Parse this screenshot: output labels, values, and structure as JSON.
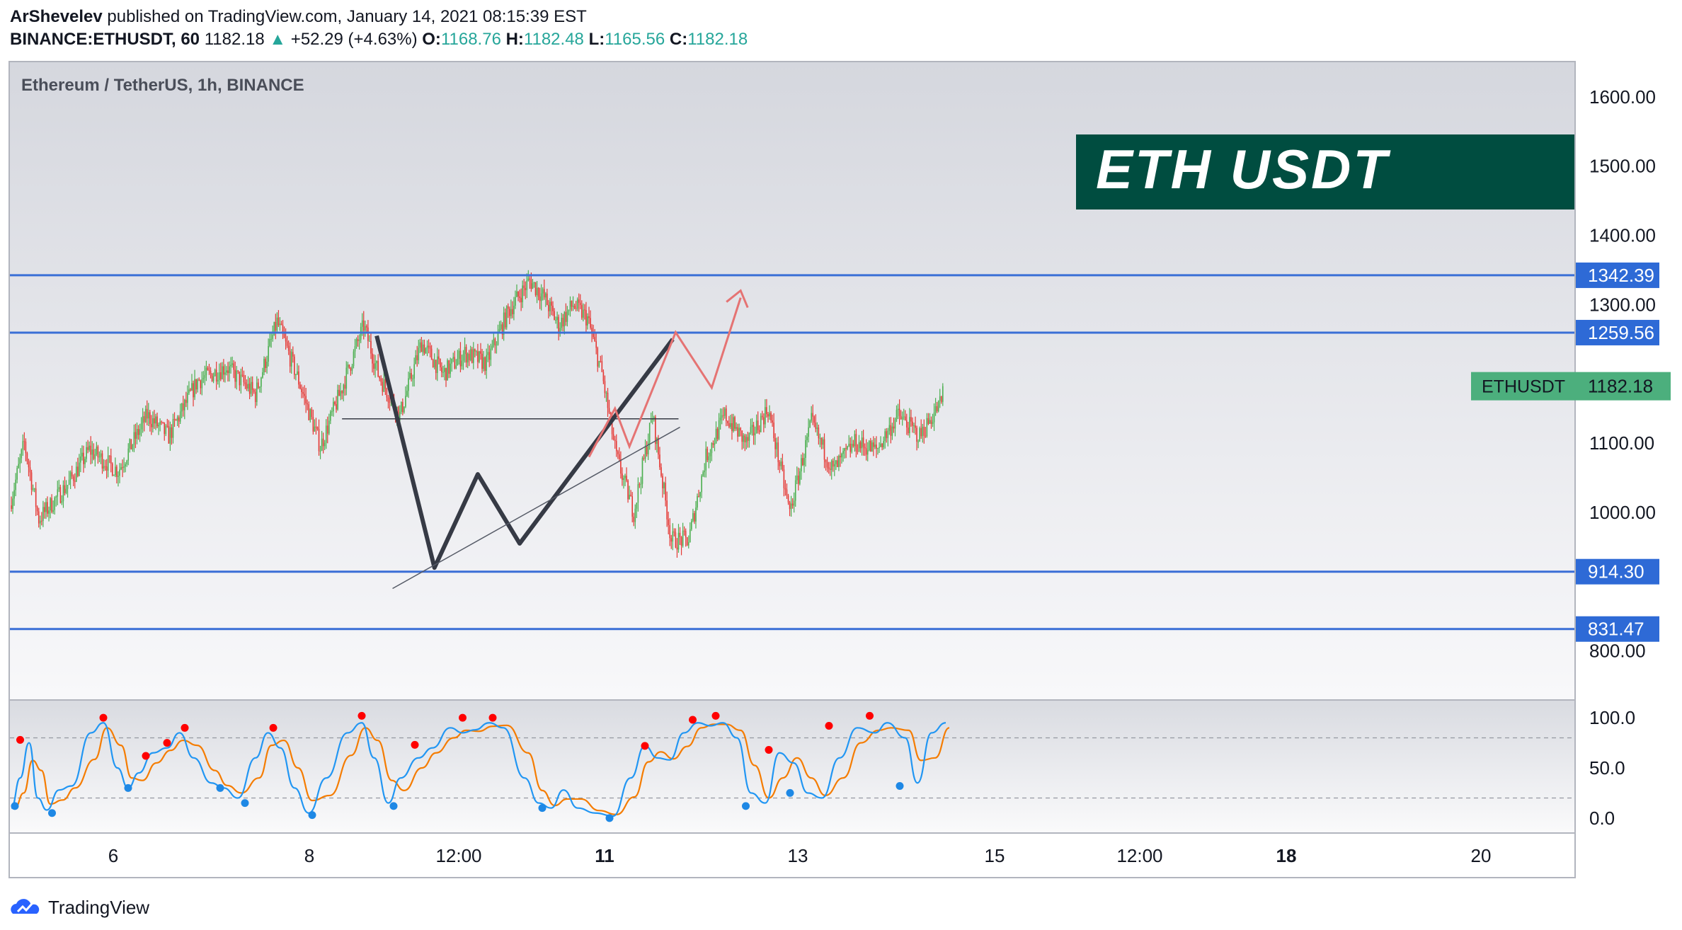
{
  "header": {
    "author": "ArShevelev",
    "published_text": "published on TradingView.com, January 14, 2021 08:15:39 EST",
    "symbol": "BINANCE:ETHUSDT, 60",
    "last": "1182.18",
    "change": "+52.29 (+4.63%)",
    "o_label": "O:",
    "o_value": "1168.76",
    "h_label": "H:",
    "h_value": "1182.48",
    "l_label": "L:",
    "l_value": "1165.56",
    "c_label": "C:",
    "c_value": "1182.18"
  },
  "footer": {
    "brand": "TradingView"
  },
  "chart_data": {
    "type": "candlestick",
    "title": "Ethereum / TetherUS, 1h, BINANCE",
    "banner": "ETH USDT",
    "ylim": [
      730,
      1650
    ],
    "y_ticks": [
      "1600.00",
      "1500.00",
      "1400.00",
      "1300.00",
      "1100.00",
      "1000.00",
      "800.00"
    ],
    "x_ticks": [
      "6",
      "8",
      "12:00",
      "11",
      "13",
      "15",
      "12:00",
      "18",
      "20"
    ],
    "price_levels": [
      {
        "label": "1342.39",
        "value": 1342.39
      },
      {
        "label": "1259.56",
        "value": 1259.56
      },
      {
        "label": "914.30",
        "value": 914.3
      },
      {
        "label": "831.47",
        "value": 831.47
      }
    ],
    "current_price": {
      "label": "ETHUSDT",
      "value": "1182.18",
      "price": 1182.18
    },
    "candles": {
      "count": 420,
      "anchors": [
        [
          0,
          1010
        ],
        [
          10,
          1100
        ],
        [
          20,
          990
        ],
        [
          40,
          1040
        ],
        [
          55,
          1090
        ],
        [
          75,
          1060
        ],
        [
          95,
          1140
        ],
        [
          110,
          1110
        ],
        [
          130,
          1190
        ],
        [
          150,
          1210
        ],
        [
          170,
          1170
        ],
        [
          185,
          1275
        ],
        [
          200,
          1190
        ],
        [
          215,
          1095
        ],
        [
          230,
          1180
        ],
        [
          245,
          1270
        ],
        [
          255,
          1200
        ],
        [
          270,
          1140
        ],
        [
          285,
          1245
        ],
        [
          300,
          1200
        ],
        [
          315,
          1230
        ],
        [
          330,
          1215
        ],
        [
          345,
          1290
        ],
        [
          360,
          1335
        ],
        [
          370,
          1310
        ],
        [
          380,
          1270
        ],
        [
          390,
          1300
        ],
        [
          400,
          1280
        ],
        [
          410,
          1200
        ],
        [
          420,
          1080
        ],
        [
          432,
          1000
        ],
        [
          445,
          1140
        ],
        [
          458,
          960
        ],
        [
          470,
          960
        ],
        [
          482,
          1080
        ],
        [
          495,
          1140
        ],
        [
          510,
          1100
        ],
        [
          525,
          1150
        ],
        [
          540,
          1000
        ],
        [
          555,
          1130
        ],
        [
          570,
          1060
        ],
        [
          585,
          1100
        ],
        [
          600,
          1090
        ],
        [
          615,
          1140
        ],
        [
          630,
          1110
        ],
        [
          645,
          1160
        ]
      ]
    },
    "indicator": {
      "type": "stochastic",
      "ylim": [
        -10,
        110
      ],
      "y_ticks": [
        "100.0",
        "50.0",
        "0.0"
      ],
      "bands": [
        80,
        20
      ],
      "k_anchors": [
        [
          0,
          10
        ],
        [
          5,
          40
        ],
        [
          10,
          75
        ],
        [
          15,
          20
        ],
        [
          20,
          8
        ],
        [
          27,
          28
        ],
        [
          34,
          32
        ],
        [
          45,
          85
        ],
        [
          52,
          95
        ],
        [
          60,
          50
        ],
        [
          66,
          30
        ],
        [
          72,
          45
        ],
        [
          80,
          65
        ],
        [
          88,
          70
        ],
        [
          95,
          85
        ],
        [
          103,
          60
        ],
        [
          113,
          35
        ],
        [
          120,
          30
        ],
        [
          128,
          20
        ],
        [
          138,
          60
        ],
        [
          145,
          85
        ],
        [
          152,
          70
        ],
        [
          160,
          30
        ],
        [
          168,
          5
        ],
        [
          178,
          40
        ],
        [
          190,
          85
        ],
        [
          198,
          95
        ],
        [
          205,
          60
        ],
        [
          213,
          15
        ],
        [
          220,
          40
        ],
        [
          230,
          60
        ],
        [
          238,
          70
        ],
        [
          248,
          90
        ],
        [
          255,
          85
        ],
        [
          262,
          88
        ],
        [
          270,
          95
        ],
        [
          278,
          90
        ],
        [
          290,
          40
        ],
        [
          298,
          15
        ],
        [
          305,
          10
        ],
        [
          312,
          28
        ],
        [
          320,
          10
        ],
        [
          330,
          5
        ],
        [
          340,
          2
        ],
        [
          350,
          40
        ],
        [
          358,
          72
        ],
        [
          365,
          60
        ],
        [
          372,
          58
        ],
        [
          380,
          85
        ],
        [
          388,
          95
        ],
        [
          395,
          92
        ],
        [
          402,
          95
        ],
        [
          410,
          80
        ],
        [
          418,
          25
        ],
        [
          426,
          15
        ],
        [
          434,
          65
        ],
        [
          442,
          55
        ],
        [
          450,
          25
        ],
        [
          458,
          20
        ],
        [
          468,
          60
        ],
        [
          478,
          90
        ],
        [
          488,
          85
        ],
        [
          495,
          95
        ],
        [
          505,
          80
        ],
        [
          512,
          35
        ],
        [
          520,
          85
        ],
        [
          528,
          95
        ]
      ],
      "dots": [
        {
          "i": 5,
          "v": 78,
          "c": "red"
        },
        {
          "i": 2,
          "v": 12,
          "c": "blue"
        },
        {
          "i": 23,
          "v": 5,
          "c": "blue"
        },
        {
          "i": 52,
          "v": 100,
          "c": "red"
        },
        {
          "i": 66,
          "v": 30,
          "c": "blue"
        },
        {
          "i": 76,
          "v": 62,
          "c": "red"
        },
        {
          "i": 88,
          "v": 75,
          "c": "red"
        },
        {
          "i": 98,
          "v": 90,
          "c": "red"
        },
        {
          "i": 118,
          "v": 30,
          "c": "blue"
        },
        {
          "i": 132,
          "v": 15,
          "c": "blue"
        },
        {
          "i": 148,
          "v": 90,
          "c": "red"
        },
        {
          "i": 170,
          "v": 3,
          "c": "blue"
        },
        {
          "i": 198,
          "v": 102,
          "c": "red"
        },
        {
          "i": 216,
          "v": 12,
          "c": "blue"
        },
        {
          "i": 228,
          "v": 73,
          "c": "red"
        },
        {
          "i": 255,
          "v": 100,
          "c": "red"
        },
        {
          "i": 272,
          "v": 100,
          "c": "red"
        },
        {
          "i": 300,
          "v": 10,
          "c": "blue"
        },
        {
          "i": 338,
          "v": 0,
          "c": "blue"
        },
        {
          "i": 358,
          "v": 72,
          "c": "red"
        },
        {
          "i": 385,
          "v": 98,
          "c": "red"
        },
        {
          "i": 398,
          "v": 102,
          "c": "red"
        },
        {
          "i": 415,
          "v": 12,
          "c": "blue"
        },
        {
          "i": 428,
          "v": 68,
          "c": "red"
        },
        {
          "i": 440,
          "v": 25,
          "c": "blue"
        },
        {
          "i": 462,
          "v": 92,
          "c": "red"
        },
        {
          "i": 485,
          "v": 102,
          "c": "red"
        },
        {
          "i": 502,
          "v": 32,
          "c": "blue"
        }
      ]
    },
    "annotations": {
      "w_pattern_color": "#363a45",
      "projection_color": "#e57373",
      "level_color": "#3a6fd6",
      "banner_color": "#004d40"
    }
  }
}
